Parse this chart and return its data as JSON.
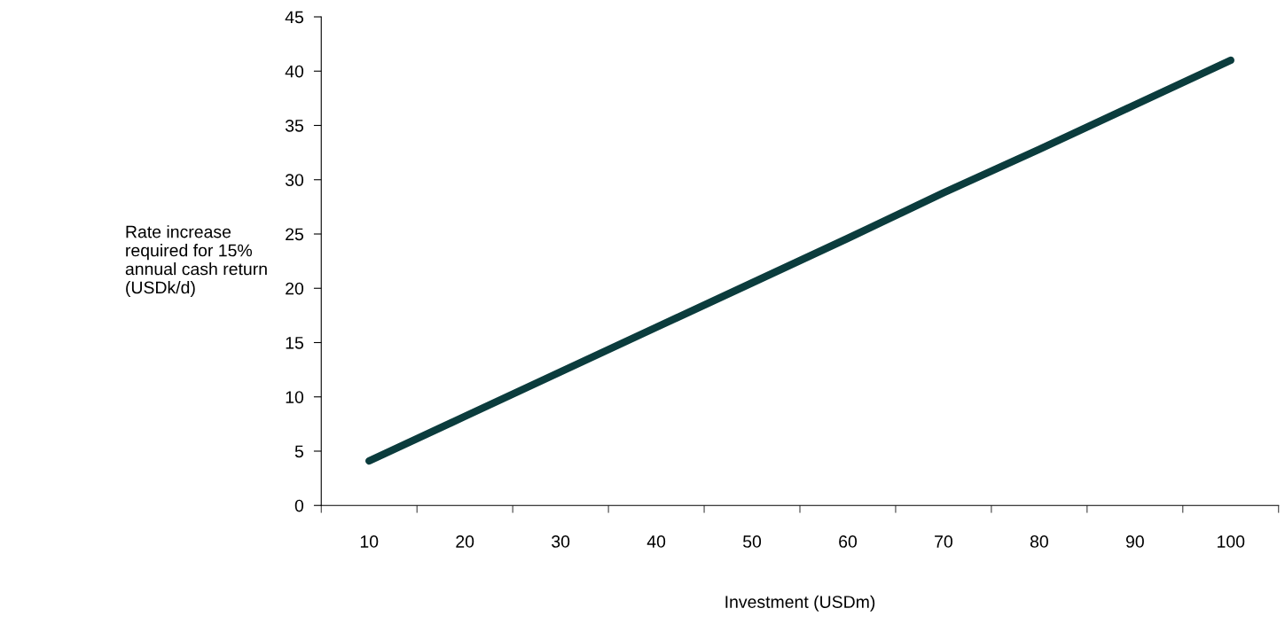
{
  "chart_data": {
    "type": "line",
    "xlabel": "Investment (USDm)",
    "ylabel": "Rate increase\nrequired for 15%\nannual cash return\n(USDk/d)",
    "categories": [
      "10",
      "20",
      "30",
      "40",
      "50",
      "60",
      "70",
      "80",
      "90",
      "100"
    ],
    "series": [
      {
        "color": "#0b3c3d",
        "values": [
          4.1,
          8.2,
          12.3,
          16.4,
          20.5,
          24.6,
          28.8,
          32.8,
          36.9,
          41.0
        ]
      }
    ],
    "ylim": [
      0,
      45
    ],
    "yticks": [
      0,
      5,
      10,
      15,
      20,
      25,
      30,
      35,
      40,
      45
    ],
    "grid": false,
    "legend": false,
    "marker": "none",
    "line_style": "solid"
  }
}
